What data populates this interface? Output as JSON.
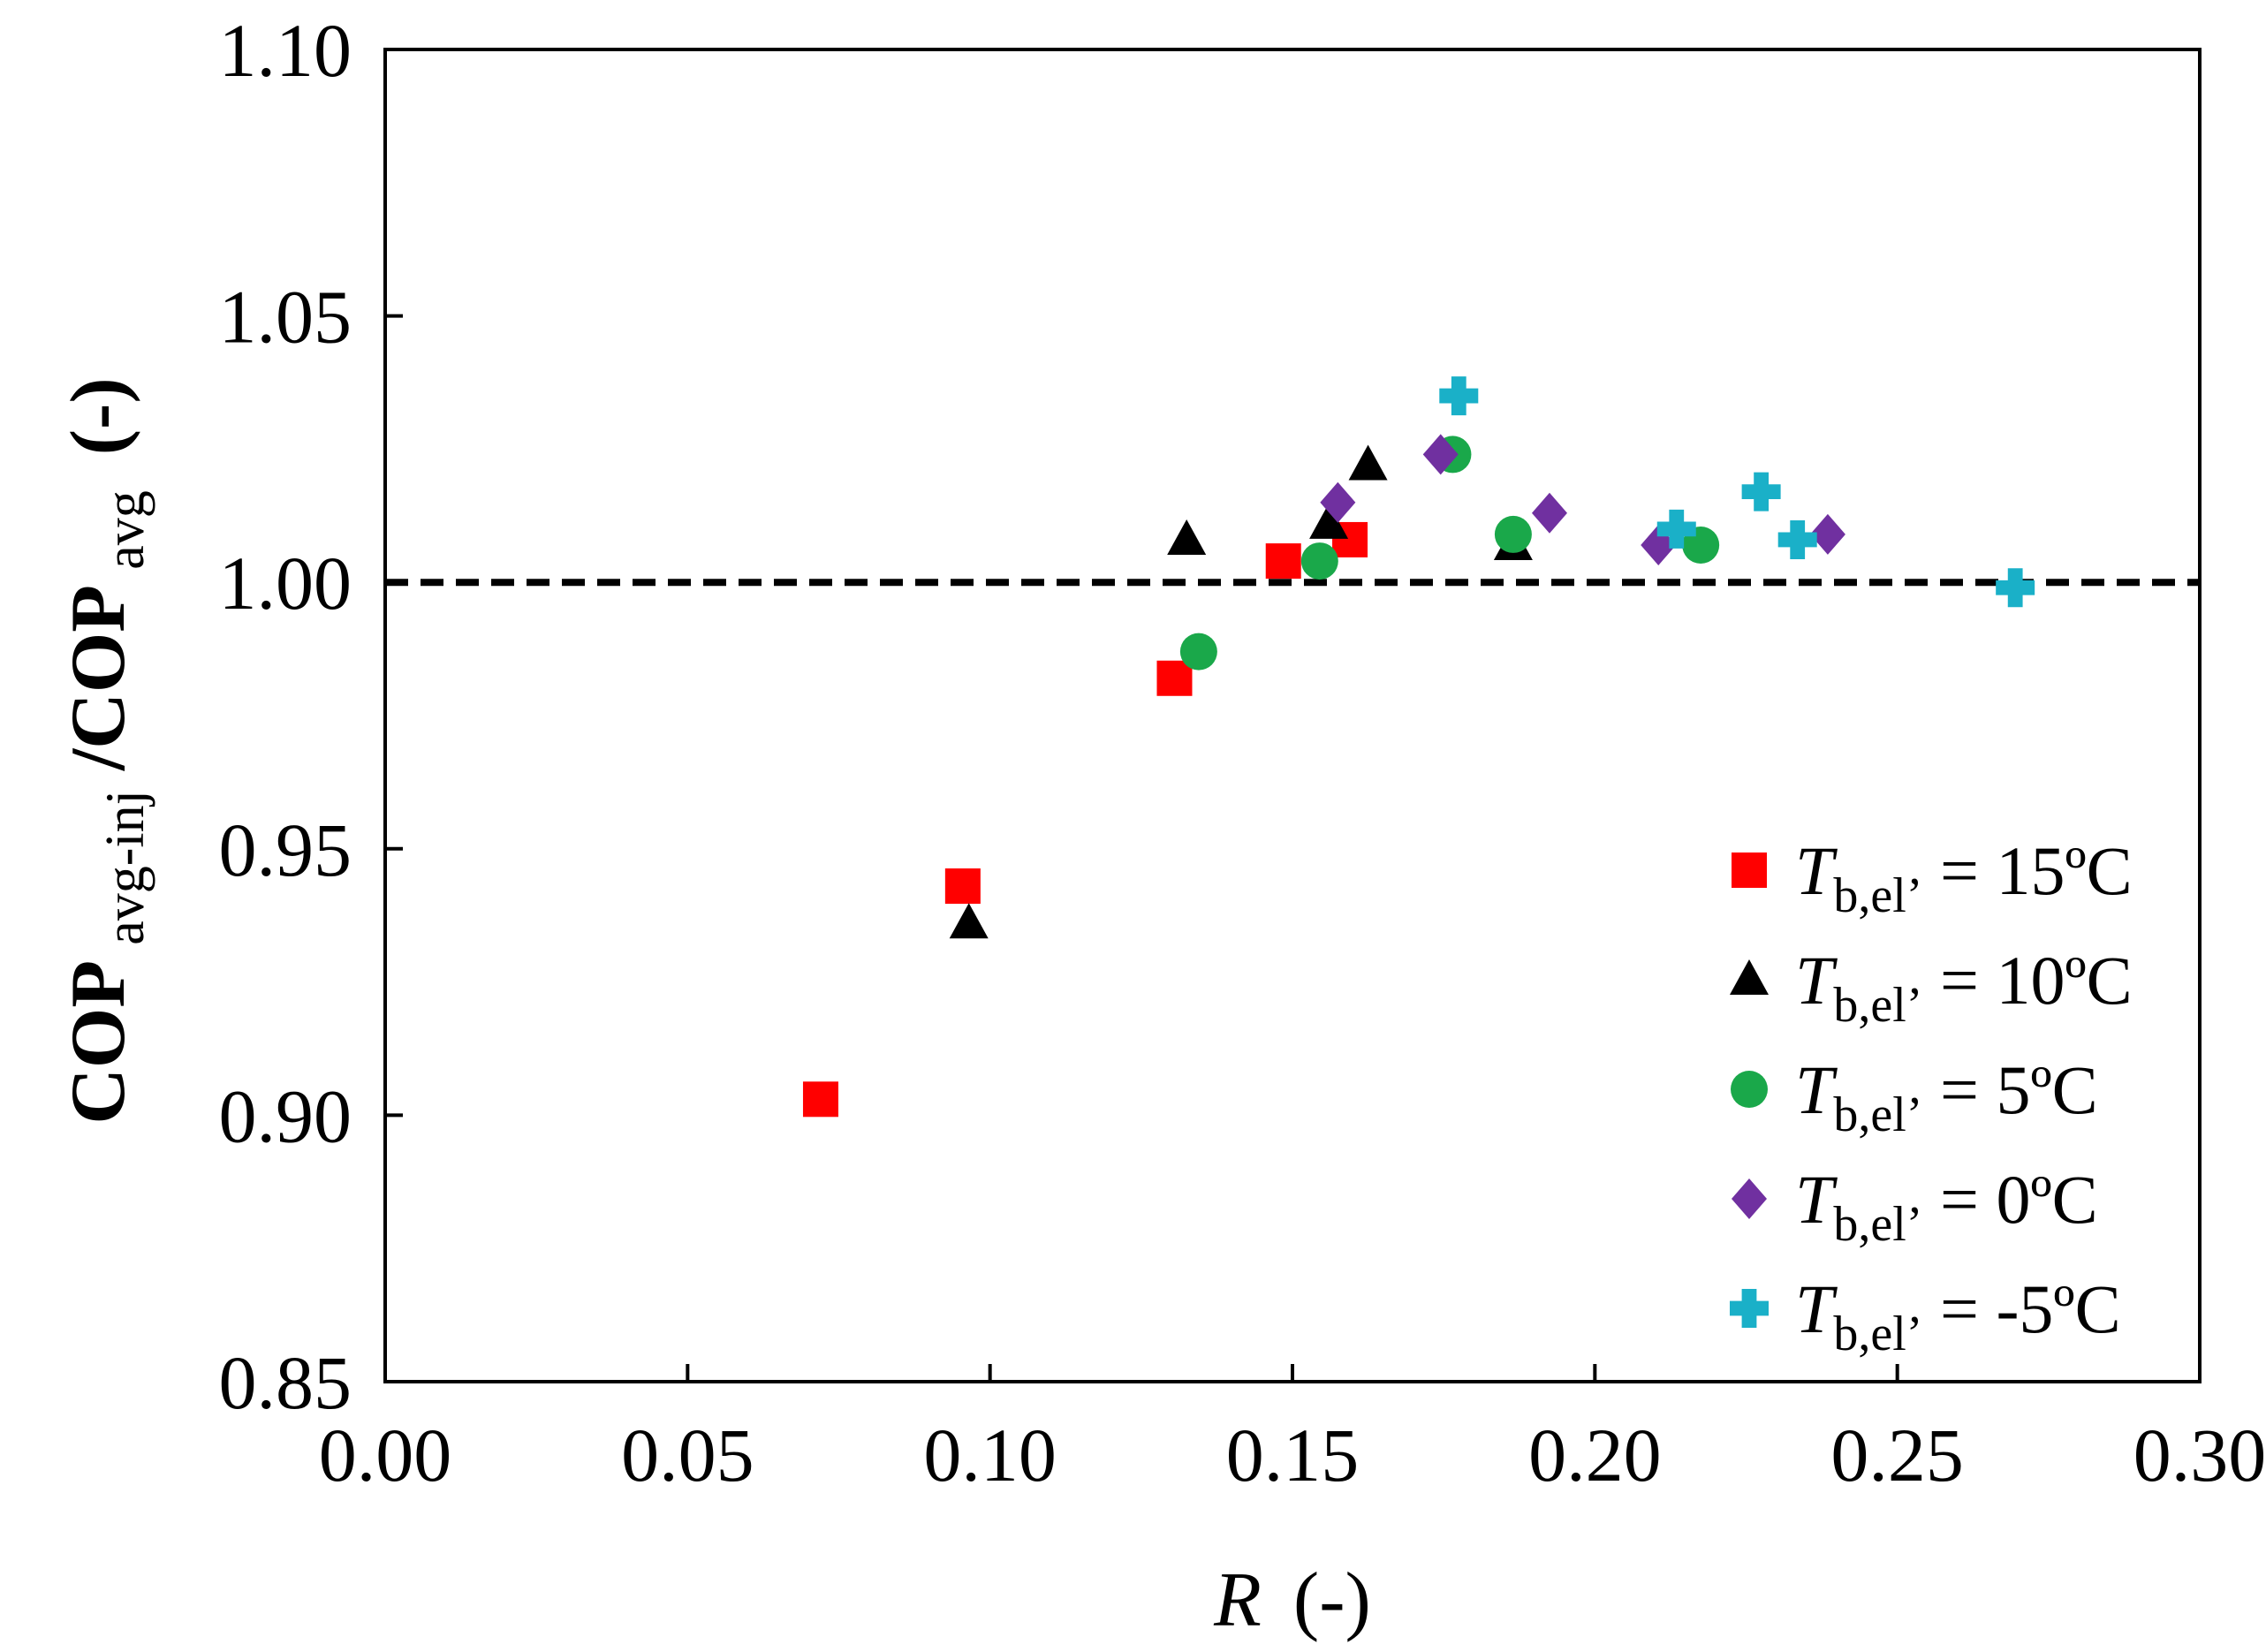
{
  "chart_data": {
    "type": "scatter",
    "title": "",
    "xlabel": {
      "main": "R",
      "unit": "(-)"
    },
    "ylabel": {
      "main": "COP",
      "sub_num": "avg-inj",
      "slash": "/COP",
      "sub_den": "avg",
      "unit": "(-)"
    },
    "xlim": [
      0.0,
      0.3
    ],
    "ylim": [
      0.85,
      1.1
    ],
    "xticks": [
      0.0,
      0.05,
      0.1,
      0.15,
      0.2,
      0.25,
      0.3
    ],
    "xtick_labels": [
      "0.00",
      "0.05",
      "0.10",
      "0.15",
      "0.20",
      "0.25",
      "0.30"
    ],
    "yticks": [
      0.85,
      0.9,
      0.95,
      1.0,
      1.05,
      1.1
    ],
    "ytick_labels": [
      "0.85",
      "0.90",
      "0.95",
      "1.00",
      "1.05",
      "1.10"
    ],
    "reference_line": {
      "y": 1.0,
      "style": "dashed"
    },
    "grid": false,
    "legend_position": "bottom-right",
    "series": [
      {
        "name": "T_b,el' = 15ºC",
        "label_var": "T",
        "label_sub": "b,el’",
        "label_rest": " = 15ºC",
        "marker": "square",
        "color": "#ff0000",
        "x": [
          0.072,
          0.0955,
          0.1305,
          0.1485,
          0.1595
        ],
        "y": [
          0.903,
          0.943,
          0.982,
          1.004,
          1.008
        ]
      },
      {
        "name": "T_b,el' = 10ºC",
        "label_var": "T",
        "label_sub": "b,el’",
        "label_rest": " = 10ºC",
        "marker": "triangle",
        "color": "#000000",
        "x": [
          0.0965,
          0.1325,
          0.156,
          0.1625,
          0.1865
        ],
        "y": [
          0.936,
          1.008,
          1.011,
          1.022,
          1.007
        ]
      },
      {
        "name": "T_b,el' = 5ºC",
        "label_var": "T",
        "label_sub": "b,el’",
        "label_rest": " = 5ºC",
        "marker": "circle",
        "color": "#1aa84a",
        "x": [
          0.1345,
          0.1545,
          0.1765,
          0.1865,
          0.2175
        ],
        "y": [
          0.987,
          1.004,
          1.024,
          1.009,
          1.007
        ]
      },
      {
        "name": "T_b,el' = 0ºC",
        "label_var": "T",
        "label_sub": "b,el’",
        "label_rest": " = 0ºC",
        "marker": "diamond",
        "color": "#7030a0",
        "x": [
          0.1575,
          0.1745,
          0.1925,
          0.2105,
          0.2385
        ],
        "y": [
          1.015,
          1.024,
          1.013,
          1.007,
          1.009
        ]
      },
      {
        "name": "T_b,el' = -5ºC",
        "label_var": "T",
        "label_sub": "b,el’",
        "label_rest": " = -5ºC",
        "marker": "plus",
        "color": "#1ab0c8",
        "x": [
          0.1775,
          0.2135,
          0.2275,
          0.2335,
          0.2695
        ],
        "y": [
          1.035,
          1.01,
          1.017,
          1.008,
          0.999
        ]
      }
    ]
  }
}
